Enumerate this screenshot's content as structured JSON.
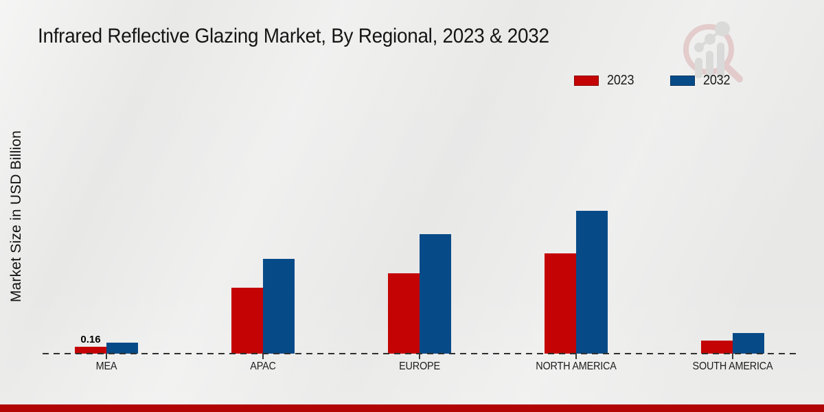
{
  "page": {
    "title": "Infrared Reflective Glazing Market, By Regional, 2023 & 2032",
    "ylabel": "Market Size in USD Billion",
    "colors": {
      "background": "#e9e9e8",
      "bar_2023": "#c40404",
      "bar_2032": "#074a88",
      "axis_line": "#2f2f2f",
      "footer_strip": "#b10404"
    },
    "watermark_icon": "magnifier-growth-chart-logo"
  },
  "legend": {
    "position": "top-right",
    "items": [
      {
        "label": "2023",
        "color": "#c40404"
      },
      {
        "label": "2032",
        "color": "#074a88"
      }
    ]
  },
  "chart_data": {
    "type": "bar",
    "title": "Infrared Reflective Glazing Market, By Regional, 2023 & 2032",
    "xlabel": "",
    "ylabel": "Market Size in USD Billion",
    "categories": [
      "MEA",
      "APAC",
      "EUROPE",
      "NORTH AMERICA",
      "SOUTH AMERICA"
    ],
    "series": [
      {
        "name": "2023",
        "color": "#c40404",
        "values": [
          0.16,
          1.54,
          1.87,
          2.34,
          0.3
        ]
      },
      {
        "name": "2032",
        "color": "#074a88",
        "values": [
          0.26,
          2.21,
          2.78,
          3.33,
          0.48
        ]
      }
    ],
    "data_labels": [
      {
        "series": "2023",
        "category": "MEA",
        "text": "0.16"
      }
    ],
    "ylim": [
      0,
      3.5
    ],
    "grid": false,
    "y_axis_ticks_visible": false,
    "baseline_style": "dashed",
    "legend_position": "top-right"
  }
}
